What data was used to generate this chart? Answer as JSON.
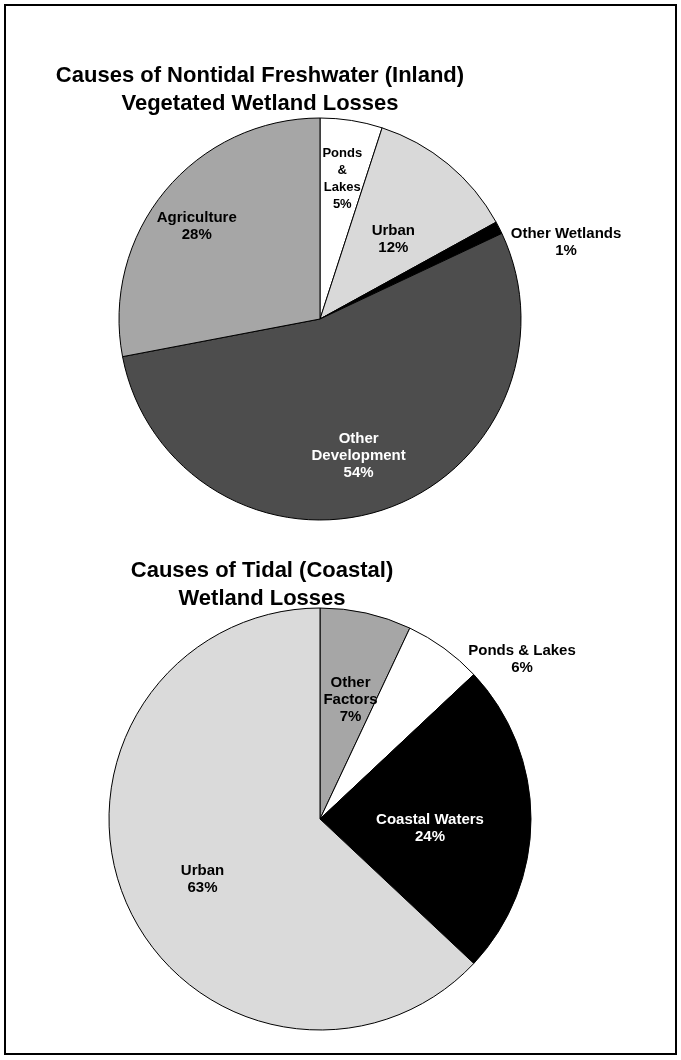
{
  "chart_data": [
    {
      "type": "pie",
      "title": "Causes of Nontidal Freshwater (Inland) Vegetated Wetland Losses",
      "categories": [
        "Ponds & Lakes",
        "Urban",
        "Other Wetlands",
        "Other Development",
        "Agriculture"
      ],
      "values": [
        5,
        12,
        1,
        54,
        28
      ],
      "value_labels": [
        "5%",
        "12%",
        "1%",
        "54%",
        "28%"
      ],
      "colors": [
        "#ffffff",
        "#d9d9d9",
        "#000000",
        "#4d4d4d",
        "#a6a6a6"
      ]
    },
    {
      "type": "pie",
      "title": "Causes of Tidal (Coastal) Wetland Losses",
      "categories": [
        "Other Factors",
        "Ponds & Lakes",
        "Coastal Waters",
        "Urban"
      ],
      "values": [
        7,
        6,
        24,
        63
      ],
      "value_labels": [
        "7%",
        "6%",
        "24%",
        "63%"
      ],
      "colors": [
        "#a6a6a6",
        "#ffffff",
        "#000000",
        "#dadada"
      ]
    }
  ]
}
